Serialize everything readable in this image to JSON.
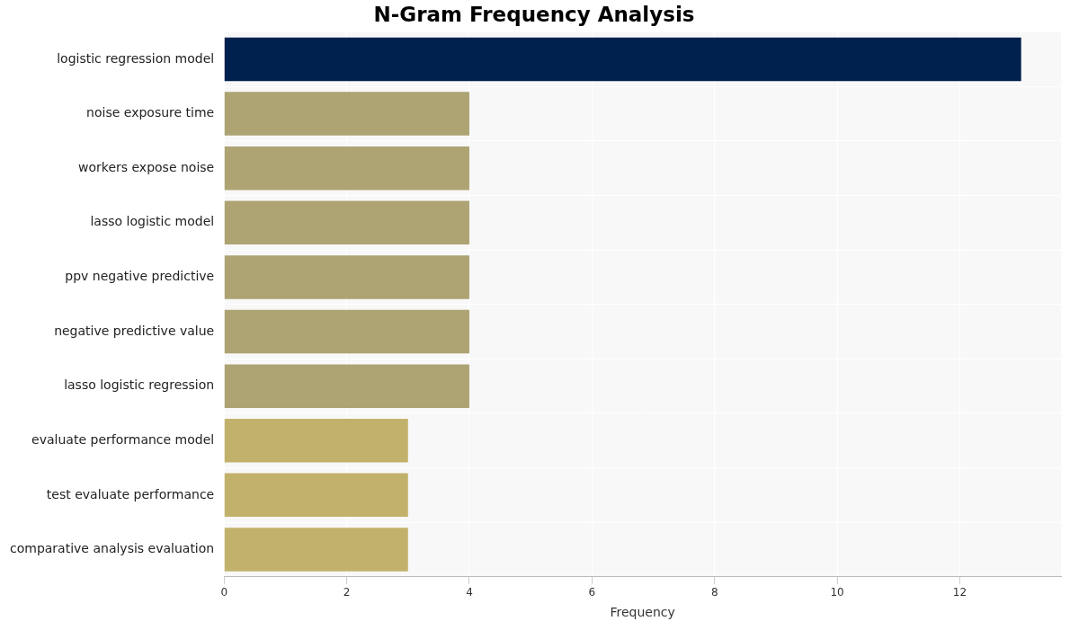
{
  "chart_data": {
    "type": "bar",
    "orientation": "horizontal",
    "title": "N-Gram Frequency Analysis",
    "x_label": "Frequency",
    "categories": [
      "logistic regression model",
      "noise exposure time",
      "workers expose noise",
      "lasso logistic model",
      "ppv negative predictive",
      "negative predictive value",
      "lasso logistic regression",
      "evaluate performance model",
      "test evaluate performance",
      "comparative analysis evaluation"
    ],
    "values": [
      13,
      4,
      4,
      4,
      4,
      4,
      4,
      3,
      3,
      3
    ],
    "colors": [
      "#00214e",
      "#ada373",
      "#ada373",
      "#ada373",
      "#ada373",
      "#ada373",
      "#ada373",
      "#c2b16b",
      "#c2b16b",
      "#c2b16b"
    ],
    "xlim": [
      0,
      13.65
    ],
    "xticks": [
      0,
      2,
      4,
      6,
      8,
      10,
      12
    ],
    "grid": true
  }
}
